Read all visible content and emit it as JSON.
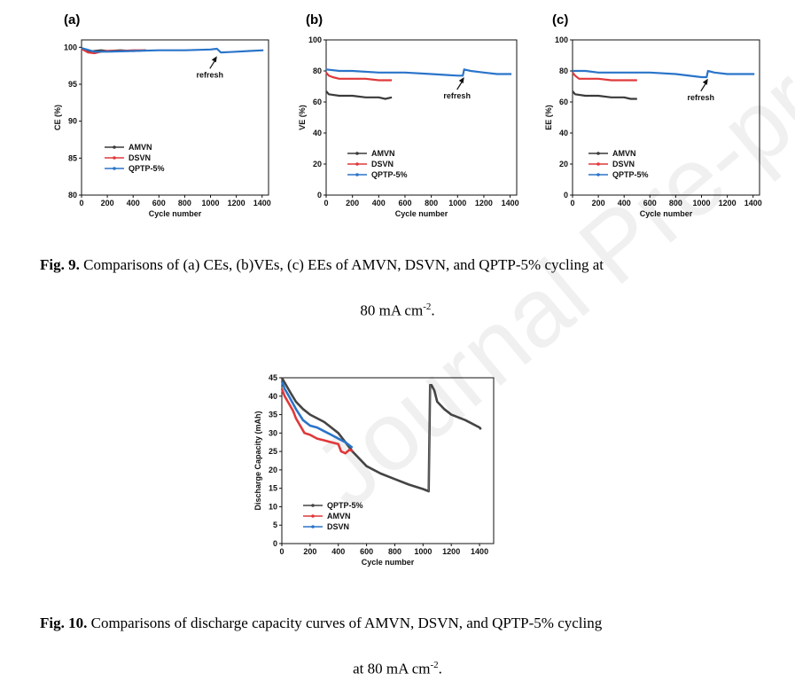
{
  "watermark": "Journal Pre-proof",
  "colors": {
    "AMVN": "#3a3a3a",
    "DSVN": "#e0383a",
    "QPTP-5%": "#2a74c9",
    "QPTP-5%-fig10": "#444444",
    "AMVN-fig10": "#e0383a",
    "DSVN-fig10": "#2a74c9"
  },
  "fig9_caption": {
    "label": "Fig. 9.",
    "line1": "Comparisons of (a) CEs, (b)VEs, (c) EEs of AMVN, DSVN, and QPTP-5% cycling at",
    "line2_main": "80 mA cm",
    "line2_sup": "-2",
    "line2_end": "."
  },
  "fig10_caption": {
    "label": "Fig. 10.",
    "line1": "Comparisons of discharge capacity curves of AMVN, DSVN, and QPTP-5% cycling",
    "line2_main": "at 80 mA cm",
    "line2_sup": "-2",
    "line2_end": "."
  },
  "chart_data": [
    {
      "id": "a",
      "panel_label": "(a)",
      "type": "line",
      "xlabel": "Cycle number",
      "ylabel": "CE (%)",
      "xlim": [
        0,
        1450
      ],
      "ylim": [
        80,
        101
      ],
      "xticks": [
        0,
        200,
        400,
        600,
        800,
        1000,
        1200,
        1400
      ],
      "yticks": [
        80,
        85,
        90,
        95,
        100
      ],
      "annotation": {
        "text": "refresh",
        "x": 1050,
        "y": 98.8
      },
      "series": [
        {
          "name": "AMVN",
          "x": [
            0,
            50,
            100,
            150,
            200,
            300,
            400,
            500
          ],
          "y": [
            99.9,
            99.4,
            99.5,
            99.6,
            99.5,
            99.6,
            99.5,
            99.6
          ]
        },
        {
          "name": "DSVN",
          "x": [
            0,
            50,
            100,
            150,
            200,
            300,
            400,
            500
          ],
          "y": [
            99.8,
            99.3,
            99.2,
            99.4,
            99.5,
            99.5,
            99.6,
            99.6
          ]
        },
        {
          "name": "QPTP-5%",
          "x": [
            0,
            100,
            200,
            400,
            600,
            800,
            1000,
            1050,
            1080,
            1200,
            1300,
            1410
          ],
          "y": [
            99.9,
            99.4,
            99.4,
            99.5,
            99.6,
            99.6,
            99.7,
            99.8,
            99.3,
            99.4,
            99.5,
            99.6
          ]
        }
      ]
    },
    {
      "id": "b",
      "panel_label": "(b)",
      "type": "line",
      "xlabel": "Cycle number",
      "ylabel": "VE (%)",
      "xlim": [
        0,
        1450
      ],
      "ylim": [
        0,
        100
      ],
      "xticks": [
        0,
        200,
        400,
        600,
        800,
        1000,
        1200,
        1400
      ],
      "yticks": [
        0,
        20,
        40,
        60,
        80,
        100
      ],
      "annotation": {
        "text": "refresh",
        "x": 1050,
        "y": 76
      },
      "series": [
        {
          "name": "AMVN",
          "x": [
            0,
            20,
            100,
            200,
            300,
            400,
            450,
            500
          ],
          "y": [
            67,
            65,
            64,
            64,
            63,
            63,
            62,
            63
          ]
        },
        {
          "name": "DSVN",
          "x": [
            0,
            20,
            50,
            100,
            200,
            300,
            400,
            500
          ],
          "y": [
            79,
            77,
            76,
            75,
            75,
            75,
            74,
            74
          ]
        },
        {
          "name": "QPTP-5%",
          "x": [
            0,
            100,
            200,
            400,
            600,
            800,
            1000,
            1040,
            1050,
            1100,
            1200,
            1300,
            1410
          ],
          "y": [
            81,
            80,
            80,
            79,
            79,
            78,
            77,
            77,
            81,
            80,
            79,
            78,
            78
          ]
        }
      ]
    },
    {
      "id": "c",
      "panel_label": "(c)",
      "type": "line",
      "xlabel": "Cycle number",
      "ylabel": "EE (%)",
      "xlim": [
        0,
        1450
      ],
      "ylim": [
        0,
        100
      ],
      "xticks": [
        0,
        200,
        400,
        600,
        800,
        1000,
        1200,
        1400
      ],
      "yticks": [
        0,
        20,
        40,
        60,
        80,
        100
      ],
      "annotation": {
        "text": "refresh",
        "x": 1050,
        "y": 75
      },
      "series": [
        {
          "name": "AMVN",
          "x": [
            0,
            20,
            100,
            200,
            300,
            400,
            450,
            500
          ],
          "y": [
            67,
            65,
            64,
            64,
            63,
            63,
            62,
            62
          ]
        },
        {
          "name": "DSVN",
          "x": [
            0,
            20,
            50,
            100,
            200,
            300,
            400,
            500
          ],
          "y": [
            79,
            77,
            75,
            75,
            75,
            74,
            74,
            74
          ]
        },
        {
          "name": "QPTP-5%",
          "x": [
            0,
            100,
            200,
            400,
            600,
            800,
            1000,
            1040,
            1050,
            1100,
            1200,
            1300,
            1410
          ],
          "y": [
            80,
            80,
            79,
            79,
            79,
            78,
            76,
            76,
            80,
            79,
            78,
            78,
            78
          ]
        }
      ]
    },
    {
      "id": "fig10",
      "type": "line",
      "xlabel": "Cycle number",
      "ylabel": "Discharge Capacity (mAh)",
      "xlim": [
        0,
        1500
      ],
      "ylim": [
        0,
        45
      ],
      "xticks": [
        0,
        200,
        400,
        600,
        800,
        1000,
        1200,
        1400
      ],
      "yticks": [
        0,
        5,
        10,
        15,
        20,
        25,
        30,
        35,
        40,
        45
      ],
      "series": [
        {
          "name": "QPTP-5%",
          "x": [
            0,
            30,
            60,
            100,
            150,
            200,
            300,
            400,
            500,
            600,
            700,
            800,
            900,
            1000,
            1040,
            1050,
            1060,
            1080,
            1100,
            1150,
            1200,
            1300,
            1400,
            1410
          ],
          "y": [
            45,
            43,
            41,
            38.5,
            36.5,
            35,
            33,
            30,
            25,
            21,
            19,
            17.5,
            16,
            14.8,
            14.2,
            43,
            43,
            41.5,
            38.5,
            36.5,
            35,
            33.5,
            31.5,
            31
          ]
        },
        {
          "name": "AMVN",
          "x": [
            0,
            20,
            50,
            80,
            100,
            130,
            160,
            200,
            250,
            300,
            350,
            400,
            420,
            450,
            480,
            500
          ],
          "y": [
            42,
            40,
            38,
            36,
            34,
            32,
            30,
            29.5,
            28.5,
            28,
            27.5,
            27,
            25,
            24.5,
            25.5,
            25
          ]
        },
        {
          "name": "DSVN",
          "x": [
            0,
            20,
            50,
            100,
            150,
            200,
            250,
            300,
            350,
            400,
            450,
            500
          ],
          "y": [
            44,
            42,
            40,
            36.5,
            33.5,
            32,
            31.5,
            30.5,
            29.5,
            28.5,
            27.5,
            26
          ]
        }
      ]
    }
  ]
}
